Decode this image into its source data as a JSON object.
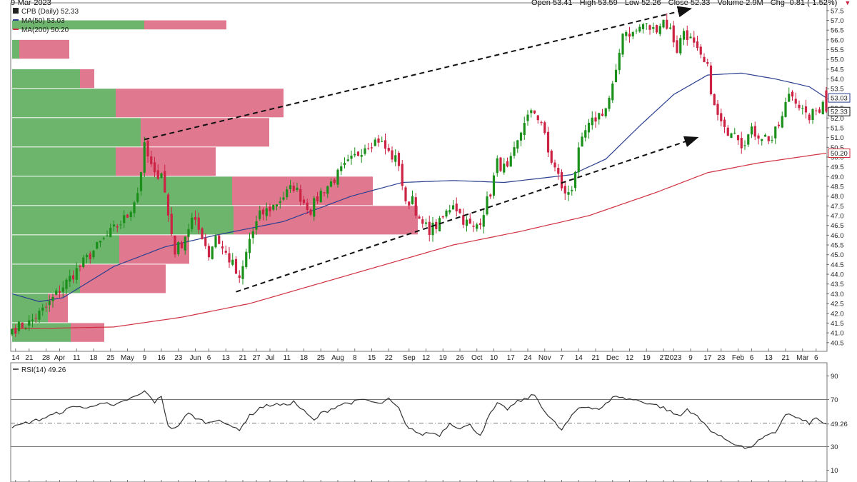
{
  "header": {
    "date": "9-Mar-2023",
    "open": "Open 53.41",
    "high": "High 53.59",
    "low": "Low 52.26",
    "close": "Close 52.33",
    "volume": "Volume 2.9M",
    "chg": "Chg -0.81 (-1.52%)",
    "chg_marker": "▼"
  },
  "legend": {
    "main": "CPB (Daily) 52.33",
    "ma50": "MA(50) 53.03",
    "ma200": "MA(200) 50.20",
    "rsi": "RSI(14) 49.26"
  },
  "colors": {
    "up": "#1a8f1a",
    "down": "#cc2244",
    "ma50": "#2a3f8f",
    "ma200": "#d03040",
    "vol_up": "#6db56d",
    "vol_down": "#e07890",
    "grid": "#dddddd"
  },
  "chart_data": [
    {
      "type": "candlestick",
      "y_ticks": [
        40.5,
        41.0,
        41.5,
        42.0,
        42.5,
        43.0,
        43.5,
        44.0,
        44.5,
        45.0,
        45.5,
        46.0,
        46.5,
        47.0,
        47.5,
        48.0,
        48.5,
        49.0,
        49.5,
        50.0,
        50.5,
        51.0,
        51.5,
        52.0,
        52.5,
        53.0,
        53.5,
        54.0,
        54.5,
        55.0,
        55.5,
        56.0,
        56.5,
        57.0,
        57.5
      ],
      "y_tick_labels": [
        "40.5",
        "41.0",
        "41.5",
        "42.0",
        "42.5",
        "43.0",
        "43.5",
        "44.0",
        "44.5",
        "45.0",
        "45.5",
        "46.0",
        "46.5",
        "47.0",
        "47.5",
        "48.0",
        "48.5",
        "49.0",
        "49.5",
        "50.0",
        "50.5",
        "51.0",
        "51.5",
        "52.0",
        "52.5",
        "53.0",
        "53.5",
        "54.0",
        "54.5",
        "55.0",
        "55.5",
        "56.0",
        "56.5",
        "57.0",
        "57.5"
      ],
      "ylim": [
        40.2,
        57.75
      ],
      "x_labels": [
        {
          "label": "14",
          "i": 1
        },
        {
          "label": "21",
          "i": 5
        },
        {
          "label": "28",
          "i": 10
        },
        {
          "label": "Apr",
          "i": 14
        },
        {
          "label": "11",
          "i": 19
        },
        {
          "label": "18",
          "i": 24
        },
        {
          "label": "25",
          "i": 29
        },
        {
          "label": "May",
          "i": 34
        },
        {
          "label": "9",
          "i": 39
        },
        {
          "label": "16",
          "i": 44
        },
        {
          "label": "23",
          "i": 49
        },
        {
          "label": "Jun",
          "i": 54
        },
        {
          "label": "6",
          "i": 58
        },
        {
          "label": "13",
          "i": 63
        },
        {
          "label": "21",
          "i": 68
        },
        {
          "label": "27",
          "i": 72
        },
        {
          "label": "Jul",
          "i": 76
        },
        {
          "label": "11",
          "i": 81
        },
        {
          "label": "18",
          "i": 86
        },
        {
          "label": "25",
          "i": 91
        },
        {
          "label": "Aug",
          "i": 96
        },
        {
          "label": "8",
          "i": 101
        },
        {
          "label": "15",
          "i": 106
        },
        {
          "label": "22",
          "i": 111
        },
        {
          "label": "Sep",
          "i": 117
        },
        {
          "label": "12",
          "i": 122
        },
        {
          "label": "19",
          "i": 127
        },
        {
          "label": "26",
          "i": 132
        },
        {
          "label": "Oct",
          "i": 137
        },
        {
          "label": "10",
          "i": 142
        },
        {
          "label": "17",
          "i": 147
        },
        {
          "label": "24",
          "i": 152
        },
        {
          "label": "Nov",
          "i": 157
        },
        {
          "label": "7",
          "i": 162
        },
        {
          "label": "14",
          "i": 167
        },
        {
          "label": "21",
          "i": 172
        },
        {
          "label": "Dec",
          "i": 177
        },
        {
          "label": "12",
          "i": 182
        },
        {
          "label": "19",
          "i": 187
        },
        {
          "label": "27",
          "i": 192
        },
        {
          "label": "2023",
          "i": 195
        },
        {
          "label": "9",
          "i": 200
        },
        {
          "label": "17",
          "i": 205
        },
        {
          "label": "23",
          "i": 209
        },
        {
          "label": "Feb",
          "i": 214
        },
        {
          "label": "6",
          "i": 218
        },
        {
          "label": "13",
          "i": 223
        },
        {
          "label": "21",
          "i": 228
        },
        {
          "label": "Mar",
          "i": 233
        },
        {
          "label": "6",
          "i": 237
        }
      ],
      "anchors_close": [
        [
          0,
          41.2
        ],
        [
          5,
          41.5
        ],
        [
          10,
          42.3
        ],
        [
          14,
          43.2
        ],
        [
          18,
          44.0
        ],
        [
          22,
          44.8
        ],
        [
          26,
          45.6
        ],
        [
          30,
          46.3
        ],
        [
          34,
          47.0
        ],
        [
          37,
          48.2
        ],
        [
          39,
          50.5
        ],
        [
          42,
          49.0
        ],
        [
          44,
          49.3
        ],
        [
          46,
          47.0
        ],
        [
          48,
          45.2
        ],
        [
          50,
          45.6
        ],
        [
          53,
          46.8
        ],
        [
          56,
          46.0
        ],
        [
          58,
          45.0
        ],
        [
          60,
          46.0
        ],
        [
          62,
          45.3
        ],
        [
          65,
          44.5
        ],
        [
          67,
          43.6
        ],
        [
          70,
          45.8
        ],
        [
          73,
          47.0
        ],
        [
          77,
          47.5
        ],
        [
          80,
          48.0
        ],
        [
          83,
          48.5
        ],
        [
          86,
          47.7
        ],
        [
          88,
          47.3
        ],
        [
          91,
          48.2
        ],
        [
          94,
          48.7
        ],
        [
          97,
          49.3
        ],
        [
          101,
          50.0
        ],
        [
          104,
          50.6
        ],
        [
          108,
          50.9
        ],
        [
          111,
          50.2
        ],
        [
          114,
          49.7
        ],
        [
          116,
          47.5
        ],
        [
          118,
          48.0
        ],
        [
          120,
          46.6
        ],
        [
          123,
          46.3
        ],
        [
          126,
          46.6
        ],
        [
          130,
          47.7
        ],
        [
          133,
          46.8
        ],
        [
          136,
          46.3
        ],
        [
          138,
          46.8
        ],
        [
          141,
          48.2
        ],
        [
          143,
          49.7
        ],
        [
          146,
          49.3
        ],
        [
          149,
          50.7
        ],
        [
          151,
          51.9
        ],
        [
          154,
          52.3
        ],
        [
          156,
          51.8
        ],
        [
          158,
          50.2
        ],
        [
          161,
          49.0
        ],
        [
          163,
          48.0
        ],
        [
          165,
          48.5
        ],
        [
          167,
          50.2
        ],
        [
          169,
          51.3
        ],
        [
          172,
          52.0
        ],
        [
          175,
          52.5
        ],
        [
          176,
          53.0
        ],
        [
          178,
          54.2
        ],
        [
          180,
          56.5
        ],
        [
          183,
          56.3
        ],
        [
          186,
          56.8
        ],
        [
          189,
          56.5
        ],
        [
          192,
          57.0
        ],
        [
          194,
          56.5
        ],
        [
          196,
          55.5
        ],
        [
          198,
          56.5
        ],
        [
          200,
          56.0
        ],
        [
          203,
          55.0
        ],
        [
          205,
          54.5
        ],
        [
          207,
          52.5
        ],
        [
          210,
          51.3
        ],
        [
          213,
          51.5
        ],
        [
          215,
          50.7
        ],
        [
          218,
          51.3
        ],
        [
          221,
          51.1
        ],
        [
          224,
          50.9
        ],
        [
          227,
          52.0
        ],
        [
          229,
          53.3
        ],
        [
          231,
          53.0
        ],
        [
          234,
          52.0
        ],
        [
          236,
          52.2
        ],
        [
          238,
          52.5
        ],
        [
          239,
          53.0
        ],
        [
          240,
          52.33
        ]
      ],
      "anchors_ma50": [
        [
          0,
          43.0
        ],
        [
          8,
          42.6
        ],
        [
          15,
          42.8
        ],
        [
          30,
          44.4
        ],
        [
          45,
          45.4
        ],
        [
          60,
          46.0
        ],
        [
          80,
          46.7
        ],
        [
          100,
          48.0
        ],
        [
          115,
          48.7
        ],
        [
          130,
          48.8
        ],
        [
          145,
          48.7
        ],
        [
          165,
          49.1
        ],
        [
          175,
          49.9
        ],
        [
          185,
          51.6
        ],
        [
          195,
          53.2
        ],
        [
          205,
          54.2
        ],
        [
          215,
          54.3
        ],
        [
          225,
          54.0
        ],
        [
          235,
          53.6
        ],
        [
          240,
          53.03
        ]
      ],
      "anchors_ma200": [
        [
          0,
          41.2
        ],
        [
          30,
          41.3
        ],
        [
          50,
          41.8
        ],
        [
          70,
          42.5
        ],
        [
          90,
          43.5
        ],
        [
          110,
          44.5
        ],
        [
          130,
          45.5
        ],
        [
          150,
          46.2
        ],
        [
          170,
          47.0
        ],
        [
          190,
          48.2
        ],
        [
          205,
          49.2
        ],
        [
          220,
          49.7
        ],
        [
          240,
          50.2
        ]
      ],
      "volume_by_price": [
        {
          "low": 57.0,
          "high": 57.5,
          "up": 0.0,
          "down": 0.0
        },
        {
          "low": 56.5,
          "high": 57.0,
          "up": 185,
          "down": 115
        },
        {
          "low": 55.0,
          "high": 56.0,
          "up": 10,
          "down": 70
        },
        {
          "low": 53.5,
          "high": 54.5,
          "up": 95,
          "down": 20
        },
        {
          "low": 52.0,
          "high": 53.5,
          "up": 145,
          "down": 235
        },
        {
          "low": 50.5,
          "high": 52.0,
          "up": 180,
          "down": 180
        },
        {
          "low": 49.0,
          "high": 50.5,
          "up": 145,
          "down": 140
        },
        {
          "low": 47.5,
          "high": 49.0,
          "up": 308,
          "down": 197
        },
        {
          "low": 46.0,
          "high": 47.5,
          "up": 310,
          "down": 258
        },
        {
          "low": 44.5,
          "high": 46.0,
          "up": 150,
          "down": 98
        },
        {
          "low": 43.0,
          "high": 44.5,
          "up": 95,
          "down": 120
        },
        {
          "low": 41.5,
          "high": 43.0,
          "up": 50,
          "down": 28
        },
        {
          "low": 40.5,
          "high": 41.5,
          "up": 82,
          "down": 47
        }
      ],
      "trendlines": [
        {
          "from": [
            66,
            43.1
          ],
          "to": [
            202,
            51.0
          ],
          "arrow": "end"
        },
        {
          "from": [
            39,
            50.9
          ],
          "to": [
            200,
            57.6
          ],
          "arrow": "end"
        }
      ]
    },
    {
      "type": "line",
      "name": "RSI(14)",
      "y_ticks": [
        10,
        30,
        49.26,
        70,
        90
      ],
      "y_tick_labels": [
        "10",
        "30",
        "49.26",
        "70",
        "90"
      ],
      "ylim": [
        0,
        100
      ],
      "reference_lines": [
        30,
        50,
        70
      ],
      "anchors": [
        [
          0,
          46
        ],
        [
          4,
          50
        ],
        [
          8,
          53
        ],
        [
          11,
          56
        ],
        [
          15,
          60
        ],
        [
          19,
          65
        ],
        [
          22,
          62
        ],
        [
          26,
          68
        ],
        [
          30,
          64
        ],
        [
          34,
          70
        ],
        [
          37,
          73
        ],
        [
          39,
          77
        ],
        [
          42,
          68
        ],
        [
          44,
          72
        ],
        [
          46,
          48
        ],
        [
          48,
          45
        ],
        [
          50,
          52
        ],
        [
          52,
          58
        ],
        [
          55,
          53
        ],
        [
          58,
          50
        ],
        [
          61,
          54
        ],
        [
          64,
          47
        ],
        [
          67,
          45
        ],
        [
          70,
          56
        ],
        [
          73,
          63
        ],
        [
          77,
          66
        ],
        [
          80,
          65
        ],
        [
          83,
          68
        ],
        [
          86,
          60
        ],
        [
          89,
          52
        ],
        [
          91,
          58
        ],
        [
          94,
          62
        ],
        [
          97,
          66
        ],
        [
          101,
          68
        ],
        [
          104,
          70
        ],
        [
          108,
          66
        ],
        [
          111,
          70
        ],
        [
          114,
          62
        ],
        [
          116,
          48
        ],
        [
          118,
          45
        ],
        [
          120,
          40
        ],
        [
          123,
          42
        ],
        [
          126,
          40
        ],
        [
          129,
          50
        ],
        [
          132,
          46
        ],
        [
          135,
          48
        ],
        [
          138,
          40
        ],
        [
          141,
          58
        ],
        [
          143,
          66
        ],
        [
          146,
          62
        ],
        [
          149,
          68
        ],
        [
          151,
          70
        ],
        [
          154,
          74
        ],
        [
          156,
          65
        ],
        [
          158,
          56
        ],
        [
          160,
          50
        ],
        [
          162,
          44
        ],
        [
          164,
          52
        ],
        [
          167,
          63
        ],
        [
          170,
          64
        ],
        [
          173,
          62
        ],
        [
          176,
          68
        ],
        [
          178,
          74
        ],
        [
          180,
          71
        ],
        [
          183,
          70
        ],
        [
          186,
          68
        ],
        [
          189,
          66
        ],
        [
          192,
          63
        ],
        [
          195,
          58
        ],
        [
          197,
          56
        ],
        [
          199,
          62
        ],
        [
          201,
          58
        ],
        [
          203,
          52
        ],
        [
          206,
          44
        ],
        [
          209,
          38
        ],
        [
          212,
          34
        ],
        [
          215,
          30
        ],
        [
          217,
          28
        ],
        [
          219,
          33
        ],
        [
          222,
          38
        ],
        [
          225,
          42
        ],
        [
          228,
          58
        ],
        [
          231,
          55
        ],
        [
          233,
          52
        ],
        [
          235,
          50
        ],
        [
          237,
          54
        ],
        [
          238,
          52
        ],
        [
          240,
          49.26
        ]
      ]
    }
  ]
}
